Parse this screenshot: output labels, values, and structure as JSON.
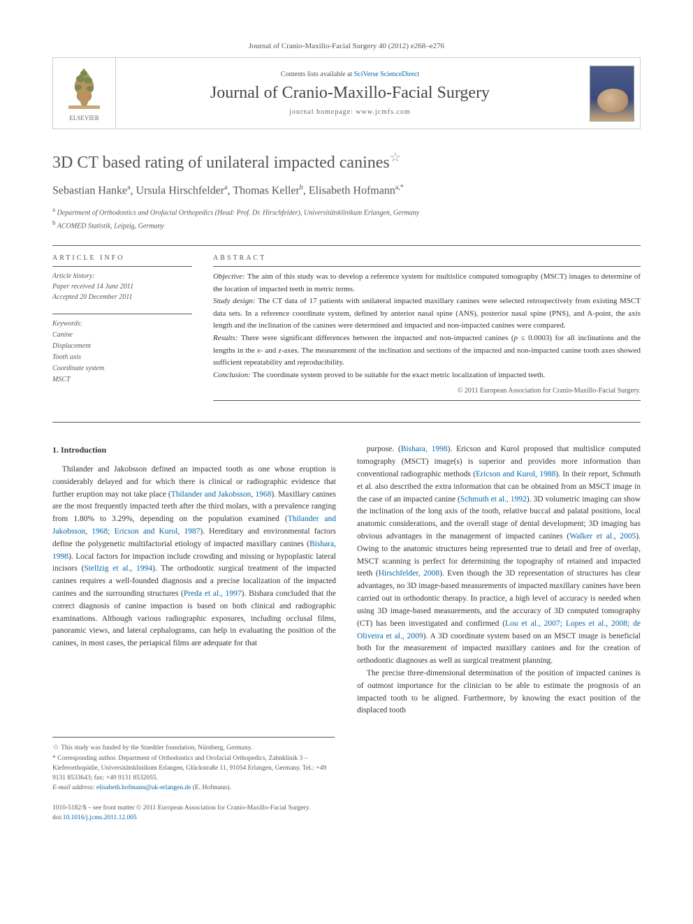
{
  "citation": "Journal of Cranio-Maxillo-Facial Surgery 40 (2012) e268–e276",
  "banner": {
    "contentsPrefix": "Contents lists available at ",
    "contentsLink": "SciVerse ScienceDirect",
    "journalTitle": "Journal of Cranio-Maxillo-Facial Surgery",
    "homepagePrefix": "journal homepage: ",
    "homepageUrl": "www.jcmfs.com",
    "elsevierLabel": "ELSEVIER"
  },
  "title": "3D CT based rating of unilateral impacted canines",
  "starGlyph": "☆",
  "authorsHtml": "Sebastian Hanke<sup>a</sup>, Ursula Hirschfelder<sup>a</sup>, Thomas Keller<sup>b</sup>, Elisabeth Hofmann<sup>a,*</sup>",
  "affiliations": [
    {
      "sup": "a",
      "text": "Department of Orthodontics and Orofacial Orthopedics (Head: Prof. Dr. Hirschfelder), Universitätsklinikum Erlangen, Germany"
    },
    {
      "sup": "b",
      "text": "ACOMED Statistik, Leipzig, Germany"
    }
  ],
  "articleInfo": {
    "heading": "ARTICLE INFO",
    "historyLabel": "Article history:",
    "received": "Paper received 14 June 2011",
    "accepted": "Accepted 20 December 2011",
    "keywordsLabel": "Keywords:",
    "keywords": [
      "Canine",
      "Displacement",
      "Tooth axis",
      "Coordinate system",
      "MSCT"
    ]
  },
  "abstract": {
    "heading": "ABSTRACT",
    "sections": [
      {
        "label": "Objective:",
        "text": "The aim of this study was to develop a reference system for multislice computed tomography (MSCT) images to determine of the location of impacted teeth in metric terms."
      },
      {
        "label": "Study design:",
        "text": "The CT data of 17 patients with unilateral impacted maxillary canines were selected retrospectively from existing MSCT data sets. In a reference coordinate system, defined by anterior nasal spine (ANS), posterior nasal spine (PNS), and A-point, the axis length and the inclination of the canines were determined and impacted and non-impacted canines were compared."
      },
      {
        "label": "Results:",
        "text": "There were significant differences between the impacted and non-impacted canines (p ≤ 0.0003) for all inclinations and the lengths in the x- and z-axes. The measurement of the inclination and sections of the impacted and non-impacted canine tooth axes showed sufficient repeatability and reproducibility."
      },
      {
        "label": "Conclusion:",
        "text": "The coordinate system proved to be suitable for the exact metric localization of impacted teeth."
      }
    ],
    "copyright": "© 2011 European Association for Cranio-Maxillo-Facial Surgery."
  },
  "body": {
    "introHeading": "1. Introduction",
    "col1": "Thilander and Jakobsson defined an impacted tooth as one whose eruption is considerably delayed and for which there is clinical or radiographic evidence that further eruption may not take place (Thilander and Jakobsson, 1968). Maxillary canines are the most frequently impacted teeth after the third molars, with a prevalence ranging from 1.80% to 3.29%, depending on the population examined (Thilander and Jakobsson, 1968; Ericson and Kurol, 1987). Hereditary and environmental factors define the polygenetic multifactorial etiology of impacted maxillary canines (Bishara, 1998). Local factors for impaction include crowding and missing or hypoplastic lateral incisors (Stellzig et al., 1994). The orthodontic surgical treatment of the impacted canines requires a well-founded diagnosis and a precise localization of the impacted canines and the surrounding structures (Preda et al., 1997). Bishara concluded that the correct diagnosis of canine impaction is based on both clinical and radiographic examinations. Although various radiographic exposures, including occlusal films, panoramic views, and lateral cephalograms, can help in evaluating the position of the canines, in most cases, the periapical films are adequate for that",
    "col2": "purpose. (Bishara, 1998). Ericson and Kurol proposed that multislice computed tomography (MSCT) image(s) is superior and provides more information than conventional radiographic methods (Ericson and Kurol, 1988). In their report, Schmuth et al. also described the extra information that can be obtained from an MSCT image in the case of an impacted canine (Schmuth et al., 1992). 3D volumetric imaging can show the inclination of the long axis of the tooth, relative buccal and palatal positions, local anatomic considerations, and the overall stage of dental development; 3D imaging has obvious advantages in the management of impacted canines (Walker et al., 2005). Owing to the anatomic structures being represented true to detail and free of overlap, MSCT scanning is perfect for determining the topography of retained and impacted teeth (Hirschfelder, 2008). Even though the 3D representation of structures has clear advantages, no 3D image-based measurements of impacted maxillary canines have been carried out in orthodontic therapy. In practice, a high level of accuracy is needed when using 3D image-based measurements, and the accuracy of 3D computed tomography (CT) has been investigated and confirmed (Lou et al., 2007; Lopes et al., 2008; de Oliveira et al., 2009). A 3D coordinate system based on an MSCT image is beneficial both for the measurement of impacted maxillary canines and for the creation of orthodontic diagnoses as well as surgical treatment planning.",
    "col2b": "The precise three-dimensional determination of the position of impacted canines is of outmost importance for the clinician to be able to estimate the prognosis of an impacted tooth to be aligned. Furthermore, by knowing the exact position of the displaced tooth"
  },
  "footnotes": {
    "funding": "This study was funded by the Staedtler foundation, Nürnberg, Germany.",
    "correspStar": "*",
    "correspondence": "Corresponding author. Department of Orthodontics and Orofacial Orthopedics, Zahnklinik 3 – Kieferorthopädie, Universitätsklinikum Erlangen, Glückstraße 11, 91054 Erlangen, Germany. Tel.: +49 9131 8533643; fax: +49 9131 8532055.",
    "emailLabel": "E-mail address:",
    "email": "elisabeth.hofmann@uk-erlangen.de",
    "emailName": "(E. Hofmann)."
  },
  "doi": {
    "line1": "1010-5182/$ – see front matter © 2011 European Association for Cranio-Maxillo-Facial Surgery.",
    "line2prefix": "doi:",
    "line2": "10.1016/j.jcms.2011.12.005"
  },
  "styling": {
    "linkColor": "#0066aa",
    "textColor": "#333333",
    "mutedColor": "#555555",
    "ruleColor": "#555555",
    "bodyFontSize": 11.5,
    "abstractFontSize": 11,
    "titleFontSize": 24
  }
}
